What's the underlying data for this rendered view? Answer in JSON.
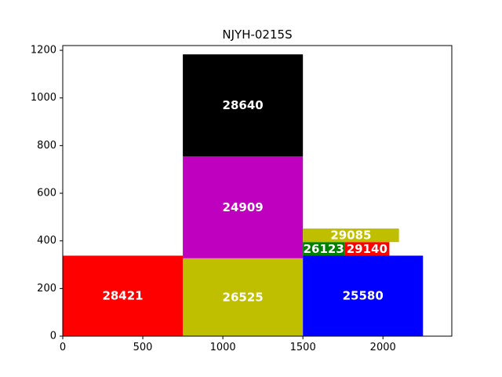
{
  "chart_data": {
    "type": "treemap-bars",
    "title": "NJYH-0215S",
    "xlim": [
      0,
      2430
    ],
    "ylim": [
      0,
      1220
    ],
    "x_ticks": [
      0,
      500,
      1000,
      1500,
      2000
    ],
    "y_ticks": [
      0,
      200,
      400,
      600,
      800,
      1000,
      1200
    ],
    "grid": false,
    "rects": [
      {
        "label": "28421",
        "x0": 0,
        "x1": 750,
        "y0": 0,
        "y1": 338,
        "color": "#ff0000"
      },
      {
        "label": "26525",
        "x0": 750,
        "x1": 1500,
        "y0": 0,
        "y1": 327,
        "color": "#bfbf00"
      },
      {
        "label": "24909",
        "x0": 750,
        "x1": 1500,
        "y0": 327,
        "y1": 755,
        "color": "#bf00bf"
      },
      {
        "label": "28640",
        "x0": 750,
        "x1": 1500,
        "y0": 755,
        "y1": 1183,
        "color": "#000000"
      },
      {
        "label": "25580",
        "x0": 1500,
        "x1": 2250,
        "y0": 0,
        "y1": 338,
        "color": "#0000ff"
      },
      {
        "label": "26123",
        "x0": 1500,
        "x1": 1760,
        "y0": 338,
        "y1": 395,
        "color": "#008000"
      },
      {
        "label": "29140",
        "x0": 1760,
        "x1": 2040,
        "y0": 338,
        "y1": 395,
        "color": "#ff0000"
      },
      {
        "label": "29085",
        "x0": 1500,
        "x1": 2100,
        "y0": 395,
        "y1": 452,
        "color": "#bfbf00"
      }
    ]
  }
}
